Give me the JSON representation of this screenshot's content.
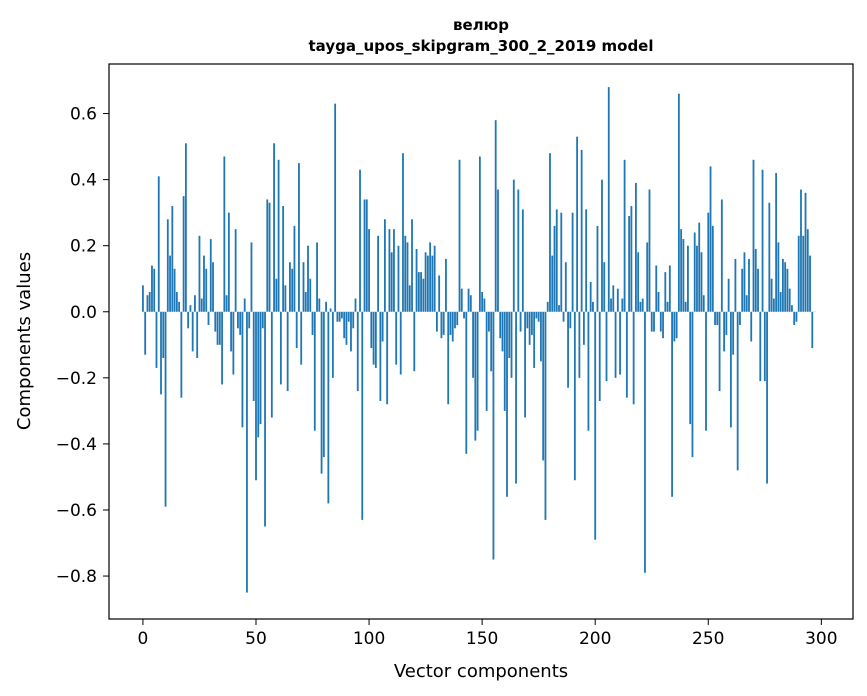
{
  "chart_data": {
    "type": "bar",
    "title_line1": "велюр",
    "title_line2": "tayga_upos_skipgram_300_2_2019 model",
    "xlabel": "Vector components",
    "ylabel": "Components values",
    "xlim": [
      -15,
      314
    ],
    "ylim": [
      -0.93,
      0.75
    ],
    "xticks": [
      0,
      50,
      100,
      150,
      200,
      250,
      300
    ],
    "xtick_labels": [
      "0",
      "50",
      "100",
      "150",
      "200",
      "250",
      "300"
    ],
    "yticks": [
      0.6,
      0.4,
      0.2,
      0.0,
      -0.2,
      -0.4,
      -0.6,
      -0.8
    ],
    "ytick_labels": [
      "0.6",
      "0.4",
      "0.2",
      "0.0",
      "−0.2",
      "−0.4",
      "−0.6",
      "−0.8"
    ],
    "bar_color": "#1f77b4",
    "values": [
      0.08,
      -0.13,
      0.05,
      0.06,
      0.14,
      0.13,
      -0.17,
      0.41,
      -0.25,
      -0.14,
      -0.59,
      0.28,
      0.17,
      0.32,
      0.13,
      0.06,
      0.03,
      -0.26,
      0.35,
      0.51,
      -0.05,
      0.02,
      -0.12,
      0.05,
      -0.14,
      0.23,
      0.04,
      0.17,
      0.13,
      -0.04,
      0.22,
      0.15,
      -0.06,
      -0.1,
      -0.1,
      -0.22,
      0.47,
      0.05,
      0.3,
      -0.12,
      -0.19,
      0.25,
      -0.05,
      -0.07,
      -0.35,
      0.04,
      -0.85,
      -0.05,
      0.21,
      -0.27,
      -0.51,
      -0.38,
      -0.34,
      -0.05,
      -0.65,
      0.34,
      0.33,
      -0.32,
      0.51,
      0.1,
      0.46,
      -0.22,
      0.32,
      0.08,
      -0.24,
      0.15,
      0.13,
      0.26,
      -0.11,
      0.45,
      -0.16,
      0.15,
      0.06,
      0.2,
      0.1,
      -0.07,
      -0.36,
      0.21,
      0.04,
      -0.49,
      -0.44,
      0.03,
      -0.58,
      0.01,
      -0.2,
      0.63,
      -0.03,
      -0.03,
      -0.02,
      -0.08,
      -0.1,
      -0.03,
      -0.12,
      -0.05,
      0.04,
      -0.24,
      0.43,
      -0.63,
      0.34,
      0.34,
      0.25,
      -0.11,
      -0.16,
      -0.17,
      0.23,
      -0.27,
      -0.09,
      0.28,
      -0.28,
      0.25,
      0.18,
      0.25,
      -0.16,
      0.2,
      -0.19,
      0.48,
      0.23,
      0.21,
      0.08,
      0.28,
      -0.18,
      0.19,
      0.12,
      0.12,
      0.1,
      0.18,
      0.17,
      0.21,
      0.17,
      0.2,
      -0.06,
      0.11,
      -0.08,
      -0.07,
      0.16,
      -0.28,
      -0.07,
      -0.09,
      -0.05,
      -0.04,
      0.46,
      0.07,
      -0.02,
      -0.43,
      0.07,
      0.05,
      -0.2,
      -0.39,
      -0.36,
      0.47,
      0.06,
      0.04,
      -0.3,
      -0.06,
      -0.18,
      -0.75,
      0.58,
      0.37,
      -0.08,
      -0.12,
      -0.3,
      -0.56,
      -0.14,
      -0.2,
      0.4,
      -0.52,
      0.37,
      -0.06,
      0.31,
      -0.32,
      -0.05,
      -0.1,
      -0.07,
      -0.17,
      -0.02,
      -0.03,
      -0.15,
      -0.45,
      -0.63,
      0.03,
      0.48,
      0.17,
      0.26,
      0.31,
      0.02,
      0.3,
      -0.03,
      0.15,
      -0.23,
      -0.05,
      0.3,
      -0.51,
      0.53,
      -0.2,
      0.49,
      -0.1,
      0.31,
      -0.36,
      0.09,
      0.03,
      -0.69,
      0.26,
      -0.27,
      0.4,
      0.15,
      -0.21,
      0.68,
      0.04,
      0.08,
      -0.2,
      0.07,
      -0.19,
      0.04,
      0.46,
      -0.26,
      0.29,
      0.32,
      -0.28,
      0.39,
      0.18,
      0.03,
      0.04,
      -0.79,
      0.21,
      0.37,
      -0.06,
      -0.06,
      0.14,
      0.06,
      -0.06,
      -0.08,
      0.12,
      0.03,
      0.14,
      -0.56,
      -0.09,
      -0.08,
      0.66,
      0.25,
      0.22,
      0.03,
      0.2,
      -0.34,
      -0.44,
      0.24,
      0.2,
      0.27,
      0.18,
      0.05,
      -0.36,
      0.3,
      0.44,
      0.26,
      -0.04,
      -0.04,
      -0.24,
      0.34,
      -0.12,
      -0.07,
      0.1,
      -0.35,
      -0.13,
      0.16,
      -0.48,
      -0.04,
      0.13,
      0.18,
      0.05,
      0.16,
      -0.09,
      0.46,
      0.19,
      0.13,
      -0.21,
      0.43,
      -0.21,
      -0.52,
      0.33,
      0.1,
      0.04,
      0.42,
      0.21,
      0.06,
      0.16,
      0.15,
      0.13,
      0.07,
      0.02,
      -0.04,
      -0.03,
      0.23,
      0.37,
      0.23,
      0.36,
      0.25,
      0.17,
      -0.11,
      0.0
    ]
  }
}
